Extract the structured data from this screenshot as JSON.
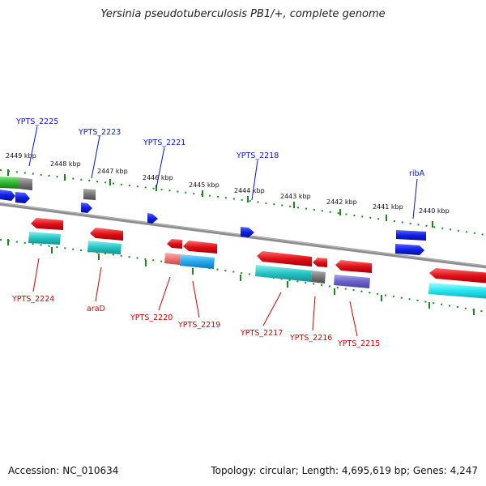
{
  "title": "Yersinia pseudotuberculosis PB1/+, complete genome",
  "accession": "Accession: NC_010634",
  "summary": "Topology: circular; Length: 4,695,619 bp; Genes: 4,247",
  "colors": {
    "forward_label": "#0a14c8",
    "reverse_label": "#d10000",
    "forward_cds": "#1020e6",
    "reverse_cds": "#e0101a",
    "rna": "#24c6c6",
    "pseudo": "#7a7a7a",
    "backbone": "#8a8a8a",
    "tick": "#1a8a1a"
  },
  "scale_labels": [
    "2449 kbp",
    "2448 kbp",
    "2447 kbp",
    "2446 kbp",
    "2445 kbp",
    "2444 kbp",
    "2443 kbp",
    "2442 kbp",
    "2441 kbp",
    "2440 kbp"
  ],
  "forward_genes": [
    "YPTS_2225",
    "YPTS_2223",
    "YPTS_2221",
    "YPTS_2218",
    "ribA"
  ],
  "reverse_genes": [
    "YPTS_2224",
    "araD",
    "YPTS_2220",
    "YPTS_2219",
    "YPTS_2217",
    "YPTS_2216",
    "YPTS_2215"
  ]
}
